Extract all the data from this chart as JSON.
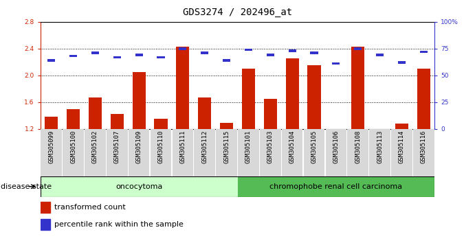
{
  "title": "GDS3274 / 202496_at",
  "samples": [
    "GSM305099",
    "GSM305100",
    "GSM305102",
    "GSM305107",
    "GSM305109",
    "GSM305110",
    "GSM305111",
    "GSM305112",
    "GSM305115",
    "GSM305101",
    "GSM305103",
    "GSM305104",
    "GSM305105",
    "GSM305106",
    "GSM305108",
    "GSM305113",
    "GSM305114",
    "GSM305116"
  ],
  "bar_values": [
    1.38,
    1.49,
    1.67,
    1.42,
    2.05,
    1.35,
    2.43,
    1.67,
    1.29,
    2.1,
    1.65,
    2.25,
    2.15,
    1.2,
    2.43,
    1.2,
    1.28,
    2.1
  ],
  "blue_values": [
    64,
    68,
    71,
    67,
    69,
    67,
    75,
    71,
    64,
    74,
    69,
    73,
    71,
    61,
    75,
    69,
    62,
    72
  ],
  "bar_bottom": 1.2,
  "ylim_left": [
    1.2,
    2.8
  ],
  "ylim_right": [
    0,
    100
  ],
  "yticks_left": [
    1.2,
    1.6,
    2.0,
    2.4,
    2.8
  ],
  "yticks_right": [
    0,
    25,
    50,
    75,
    100
  ],
  "ytick_labels_right": [
    "0",
    "25",
    "50",
    "75",
    "100%"
  ],
  "bar_color": "#cc2200",
  "blue_color": "#3333cc",
  "group1_label": "oncocytoma",
  "group2_label": "chromophobe renal cell carcinoma",
  "group1_count": 9,
  "group2_count": 9,
  "group1_color": "#ccffcc",
  "group2_color": "#55bb55",
  "disease_state_label": "disease state",
  "legend_bar_label": "transformed count",
  "legend_blue_label": "percentile rank within the sample",
  "title_fontsize": 10,
  "tick_fontsize": 6.5,
  "label_fontsize": 8
}
